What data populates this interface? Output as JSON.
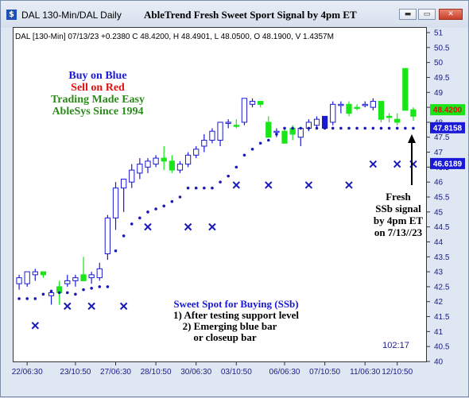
{
  "window": {
    "title": "DAL 130-Min/DAL Daily",
    "chart_title": "AbleTrend Fresh Sweet Sport Signal by 4pm ET",
    "buttons": [
      "▬",
      "▭",
      "✕"
    ]
  },
  "info_line": "DAL [130-Min] 07/13/23  +0.2380 C 48.4200, H 48.4901, L 48.0500, O 48.1900, V 1.4357M",
  "legend_text": {
    "line1": "Buy on Blue",
    "line2": "Sell on Red",
    "line3": "Trading Made Easy",
    "line4": "AbleSys Since 1994"
  },
  "annotation": {
    "line1": "Fresh",
    "line2": "SSb signal",
    "line3": "by 4pm ET",
    "line4": "on 7/13//23"
  },
  "sweet_spot": {
    "line1": "Sweet Spot for Buying (SSb)",
    "line2": "1) After testing support level",
    "line3": "2) Emerging blue bar",
    "line4": "or closeup bar"
  },
  "time_label": "102:17",
  "colors": {
    "blue_bar": "#1a1ad6",
    "green_bar": "#18e618",
    "dots_x": "#1a1ab8",
    "legend_blue": "#1a1ad6",
    "legend_red": "#e01010",
    "legend_green": "#2a8a1a"
  },
  "chart_data": {
    "type": "candlestick",
    "title": "AbleTrend Fresh Sweet Sport Signal by 4pm ET",
    "ylim": [
      40,
      51.2
    ],
    "y_ticks": [
      40,
      40.5,
      41,
      41.5,
      42,
      42.5,
      43,
      43.5,
      44,
      44.5,
      45,
      45.5,
      46,
      46.5,
      47,
      47.5,
      48,
      48.5,
      49,
      49.5,
      50,
      50.5,
      51
    ],
    "x_tick_labels": [
      "22/06:30",
      "23/10:50",
      "27/06:30",
      "28/10:50",
      "30/06:30",
      "03/10:50",
      "06/06:30",
      "07/10:50",
      "11/06:30",
      "12/10:50"
    ],
    "price_tags": [
      {
        "value": 48.42,
        "label": "48.4200",
        "fill": "#18e618",
        "text": "#e01010"
      },
      {
        "value": 47.8158,
        "label": "47.8158",
        "fill": "#1a1ad6",
        "text": "#ffffff"
      },
      {
        "value": 46.6189,
        "label": "46.6189",
        "fill": "#1a1ad6",
        "text": "#ffffff"
      }
    ],
    "bars": [
      {
        "o": 42.6,
        "h": 42.9,
        "l": 42.4,
        "c": 42.8,
        "color": "blue"
      },
      {
        "o": 42.6,
        "h": 43.0,
        "l": 42.5,
        "c": 43.0,
        "color": "blue"
      },
      {
        "o": 42.9,
        "h": 43.1,
        "l": 42.7,
        "c": 43.0,
        "color": "blue"
      },
      {
        "o": 43.0,
        "h": 43.0,
        "l": 42.8,
        "c": 42.9,
        "color": "green"
      },
      {
        "o": 42.2,
        "h": 42.4,
        "l": 41.9,
        "c": 42.3,
        "color": "blue"
      },
      {
        "o": 42.5,
        "h": 42.7,
        "l": 41.9,
        "c": 42.3,
        "color": "green"
      },
      {
        "o": 42.6,
        "h": 42.9,
        "l": 42.5,
        "c": 42.7,
        "color": "blue"
      },
      {
        "o": 42.7,
        "h": 42.9,
        "l": 42.5,
        "c": 42.8,
        "color": "blue"
      },
      {
        "o": 42.9,
        "h": 43.5,
        "l": 42.7,
        "c": 42.7,
        "color": "green"
      },
      {
        "o": 42.8,
        "h": 43.0,
        "l": 42.6,
        "c": 42.9,
        "color": "blue"
      },
      {
        "o": 42.8,
        "h": 43.3,
        "l": 42.7,
        "c": 43.1,
        "color": "blue"
      },
      {
        "o": 43.6,
        "h": 44.9,
        "l": 43.4,
        "c": 44.8,
        "color": "blue"
      },
      {
        "o": 44.8,
        "h": 46.0,
        "l": 44.4,
        "c": 45.8,
        "color": "blue"
      },
      {
        "o": 45.8,
        "h": 46.1,
        "l": 45.0,
        "c": 46.1,
        "color": "blue"
      },
      {
        "o": 46.0,
        "h": 46.6,
        "l": 45.8,
        "c": 46.4,
        "color": "blue"
      },
      {
        "o": 46.3,
        "h": 46.8,
        "l": 46.1,
        "c": 46.6,
        "color": "blue"
      },
      {
        "o": 46.5,
        "h": 46.8,
        "l": 46.3,
        "c": 46.7,
        "color": "blue"
      },
      {
        "o": 46.6,
        "h": 46.9,
        "l": 46.5,
        "c": 46.8,
        "color": "blue"
      },
      {
        "o": 46.8,
        "h": 47.2,
        "l": 46.4,
        "c": 46.7,
        "color": "green"
      },
      {
        "o": 46.7,
        "h": 46.9,
        "l": 46.3,
        "c": 46.4,
        "color": "green"
      },
      {
        "o": 46.4,
        "h": 46.7,
        "l": 46.3,
        "c": 46.6,
        "color": "blue"
      },
      {
        "o": 46.6,
        "h": 47.0,
        "l": 46.5,
        "c": 46.9,
        "color": "blue"
      },
      {
        "o": 46.9,
        "h": 47.2,
        "l": 46.8,
        "c": 47.1,
        "color": "blue"
      },
      {
        "o": 47.2,
        "h": 47.6,
        "l": 47.0,
        "c": 47.4,
        "color": "blue"
      },
      {
        "o": 47.4,
        "h": 47.8,
        "l": 47.3,
        "c": 47.7,
        "color": "blue"
      },
      {
        "o": 47.4,
        "h": 48.0,
        "l": 47.2,
        "c": 48.0,
        "color": "blue"
      },
      {
        "o": 48.0,
        "h": 48.1,
        "l": 47.8,
        "c": 48.0,
        "color": "blue"
      },
      {
        "o": 47.9,
        "h": 48.1,
        "l": 47.8,
        "c": 47.9,
        "color": "green"
      },
      {
        "o": 48.0,
        "h": 48.8,
        "l": 47.9,
        "c": 48.8,
        "color": "blue"
      },
      {
        "o": 48.6,
        "h": 48.8,
        "l": 48.5,
        "c": 48.7,
        "color": "blue"
      },
      {
        "o": 48.7,
        "h": 48.7,
        "l": 48.5,
        "c": 48.6,
        "color": "green"
      },
      {
        "o": 48.0,
        "h": 48.2,
        "l": 47.5,
        "c": 47.5,
        "color": "green"
      },
      {
        "o": 47.7,
        "h": 47.8,
        "l": 47.5,
        "c": 47.7,
        "color": "blue"
      },
      {
        "o": 47.7,
        "h": 47.8,
        "l": 47.3,
        "c": 47.3,
        "color": "green"
      },
      {
        "o": 47.8,
        "h": 47.9,
        "l": 47.4,
        "c": 47.6,
        "color": "green"
      },
      {
        "o": 47.5,
        "h": 47.8,
        "l": 47.2,
        "c": 47.8,
        "color": "blue"
      },
      {
        "o": 47.8,
        "h": 48.1,
        "l": 47.7,
        "c": 48.0,
        "color": "blue"
      },
      {
        "o": 47.9,
        "h": 48.2,
        "l": 47.8,
        "c": 48.1,
        "color": "blue"
      },
      {
        "o": 48.2,
        "h": 48.2,
        "l": 47.8,
        "c": 47.8,
        "color": "blue-solid"
      },
      {
        "o": 48.0,
        "h": 48.7,
        "l": 47.9,
        "c": 48.6,
        "color": "blue"
      },
      {
        "o": 48.6,
        "h": 48.7,
        "l": 48.3,
        "c": 48.6,
        "color": "blue"
      },
      {
        "o": 48.6,
        "h": 48.7,
        "l": 48.2,
        "c": 48.3,
        "color": "green"
      },
      {
        "o": 48.5,
        "h": 48.6,
        "l": 48.4,
        "c": 48.5,
        "color": "green"
      },
      {
        "o": 48.6,
        "h": 48.7,
        "l": 48.5,
        "c": 48.6,
        "color": "blue"
      },
      {
        "o": 48.5,
        "h": 48.8,
        "l": 48.4,
        "c": 48.7,
        "color": "blue"
      },
      {
        "o": 48.7,
        "h": 48.7,
        "l": 48.0,
        "c": 48.1,
        "color": "green"
      },
      {
        "o": 48.2,
        "h": 48.3,
        "l": 48.0,
        "c": 48.2,
        "color": "green"
      },
      {
        "o": 48.0,
        "h": 48.3,
        "l": 47.9,
        "c": 48.1,
        "color": "green"
      },
      {
        "o": 49.8,
        "h": 49.8,
        "l": 48.4,
        "c": 48.4,
        "color": "green"
      },
      {
        "o": 48.2,
        "h": 48.5,
        "l": 48.05,
        "c": 48.42,
        "color": "green"
      }
    ],
    "support_dots": [
      42.1,
      42.1,
      42.1,
      42.25,
      42.35,
      42.3,
      42.3,
      42.25,
      42.4,
      42.45,
      42.5,
      42.5,
      43.7,
      44.2,
      44.6,
      44.8,
      45.0,
      45.1,
      45.2,
      45.35,
      45.5,
      45.8,
      45.8,
      45.8,
      45.8,
      46.0,
      46.2,
      46.5,
      46.9,
      47.1,
      47.3,
      47.4,
      47.6,
      47.8,
      47.8,
      47.8,
      47.8,
      47.8,
      47.8,
      47.8,
      47.8,
      47.8,
      47.8,
      47.8,
      47.8,
      47.8,
      47.8,
      47.8,
      47.8,
      47.8
    ],
    "x_marks": [
      {
        "i": 2,
        "v": 41.2
      },
      {
        "i": 6,
        "v": 41.85
      },
      {
        "i": 9,
        "v": 41.85
      },
      {
        "i": 13,
        "v": 41.85
      },
      {
        "i": 16,
        "v": 44.5
      },
      {
        "i": 21,
        "v": 44.5
      },
      {
        "i": 24,
        "v": 44.5
      },
      {
        "i": 27,
        "v": 45.9
      },
      {
        "i": 31,
        "v": 45.9
      },
      {
        "i": 36,
        "v": 45.9
      },
      {
        "i": 41,
        "v": 45.9
      },
      {
        "i": 44,
        "v": 46.6
      },
      {
        "i": 47,
        "v": 46.6
      },
      {
        "i": 49,
        "v": 46.6
      }
    ]
  }
}
